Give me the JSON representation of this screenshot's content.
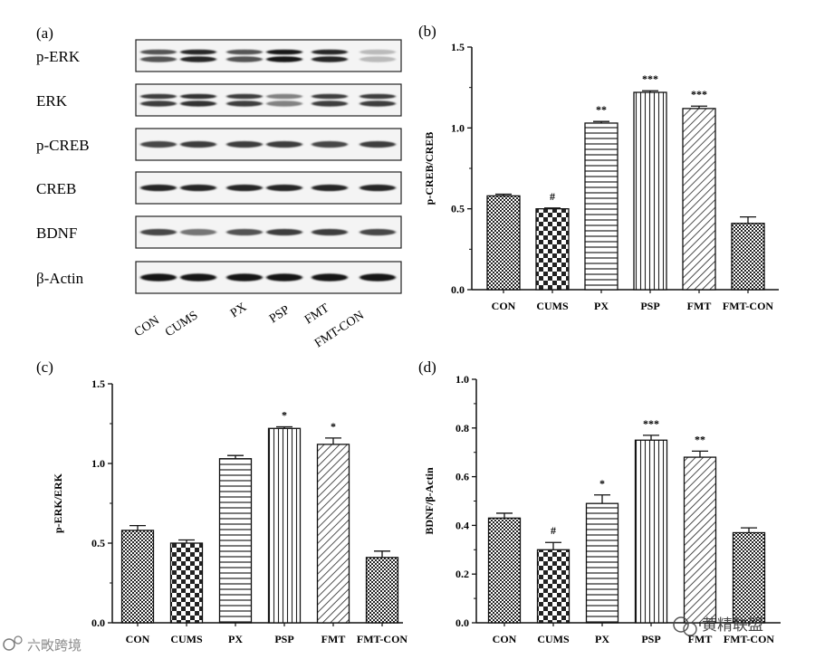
{
  "panel_labels": {
    "a": "(a)",
    "b": "(b)",
    "c": "(c)",
    "d": "(d)"
  },
  "blot": {
    "rows": [
      "p-ERK",
      "ERK",
      "p-CREB",
      "CREB",
      "BDNF",
      "β-Actin"
    ],
    "lanes": [
      "CON",
      "CUMS",
      "PX",
      "PSP",
      "FMT",
      "FMT-CON"
    ],
    "band_intensity": [
      [
        0.75,
        0.95,
        0.75,
        1.0,
        0.95,
        0.3
      ],
      [
        0.85,
        0.9,
        0.85,
        0.55,
        0.85,
        0.85
      ],
      [
        0.8,
        0.85,
        0.85,
        0.85,
        0.8,
        0.85
      ],
      [
        0.95,
        0.95,
        0.95,
        0.95,
        0.95,
        0.95
      ],
      [
        0.8,
        0.6,
        0.75,
        0.85,
        0.85,
        0.8
      ],
      [
        1.0,
        1.0,
        1.0,
        1.0,
        1.0,
        1.0
      ]
    ]
  },
  "chart_data": [
    {
      "panel": "b",
      "type": "bar",
      "ylabel": "p-CREB/CREB",
      "ylim": [
        0,
        1.5
      ],
      "yticks": [
        "0.0",
        "0.5",
        "1.0",
        "1.5"
      ],
      "categories": [
        "CON",
        "CUMS",
        "PX",
        "PSP",
        "FMT",
        "FMT-CON"
      ],
      "values": [
        0.58,
        0.5,
        1.03,
        1.22,
        1.12,
        0.41
      ],
      "errors": [
        0.01,
        0.005,
        0.01,
        0.01,
        0.015,
        0.04
      ],
      "annotations": [
        "",
        "#",
        "**",
        "***",
        "***",
        ""
      ],
      "patterns": [
        "fine-check",
        "check",
        "horizontal",
        "vertical",
        "diagonal",
        "fine-check"
      ]
    },
    {
      "panel": "c",
      "type": "bar",
      "ylabel": "p-ERK/ERK",
      "ylim": [
        0,
        1.5
      ],
      "yticks": [
        "0.0",
        "0.5",
        "1.0",
        "1.5"
      ],
      "categories": [
        "CON",
        "CUMS",
        "PX",
        "PSP",
        "FMT",
        "FMT-CON"
      ],
      "values": [
        0.58,
        0.5,
        1.03,
        1.22,
        1.12,
        0.41
      ],
      "errors": [
        0.03,
        0.02,
        0.02,
        0.01,
        0.04,
        0.04
      ],
      "annotations": [
        "",
        "",
        "",
        "*",
        "*",
        ""
      ],
      "patterns": [
        "fine-check",
        "check",
        "horizontal",
        "vertical",
        "diagonal",
        "fine-check"
      ]
    },
    {
      "panel": "d",
      "type": "bar",
      "ylabel": "BDNF/β-Actin",
      "ylim": [
        0,
        1.0
      ],
      "yticks": [
        "0.0",
        "0.2",
        "0.4",
        "0.6",
        "0.8",
        "1.0"
      ],
      "categories": [
        "CON",
        "CUMS",
        "PX",
        "PSP",
        "FMT",
        "FMT-CON"
      ],
      "values": [
        0.43,
        0.3,
        0.49,
        0.75,
        0.68,
        0.37
      ],
      "errors": [
        0.02,
        0.03,
        0.035,
        0.02,
        0.025,
        0.02
      ],
      "annotations": [
        "",
        "#",
        "*",
        "***",
        "**",
        ""
      ],
      "patterns": [
        "fine-check",
        "check",
        "horizontal",
        "vertical",
        "diagonal",
        "fine-check"
      ]
    }
  ],
  "watermarks": {
    "left": "六畋跨境",
    "right": "黄精联盟"
  }
}
